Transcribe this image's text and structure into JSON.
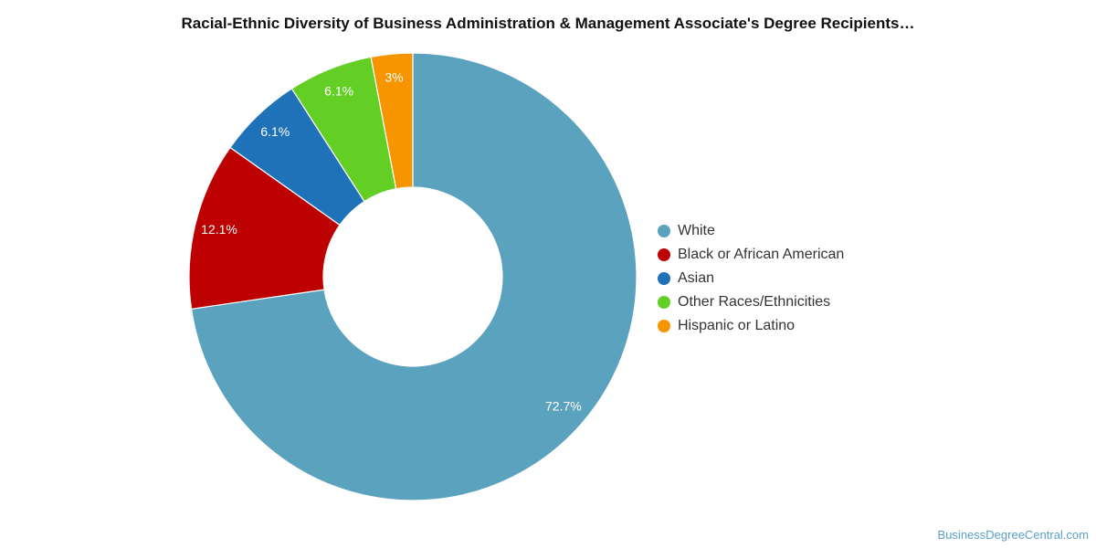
{
  "chart_data": {
    "type": "pie",
    "subtype": "donut",
    "title": "Racial-Ethnic Diversity of Business Administration & Management Associate's Degree Recipients…",
    "legend_position": "right",
    "slices": [
      {
        "label": "White",
        "value": 72.7,
        "value_label": "72.7%",
        "color": "#5ba2be"
      },
      {
        "label": "Black or African American",
        "value": 12.1,
        "value_label": "12.1%",
        "color": "#bd0000"
      },
      {
        "label": "Asian",
        "value": 6.1,
        "value_label": "6.1%",
        "color": "#1f72b8"
      },
      {
        "label": "Other Races/Ethnicities",
        "value": 6.1,
        "value_label": "6.1%",
        "color": "#63cf25"
      },
      {
        "label": "Hispanic or Latino",
        "value": 3.0,
        "value_label": "3%",
        "color": "#f79500"
      }
    ]
  },
  "footer": {
    "watermark": "BusinessDegreeCentral.com"
  }
}
